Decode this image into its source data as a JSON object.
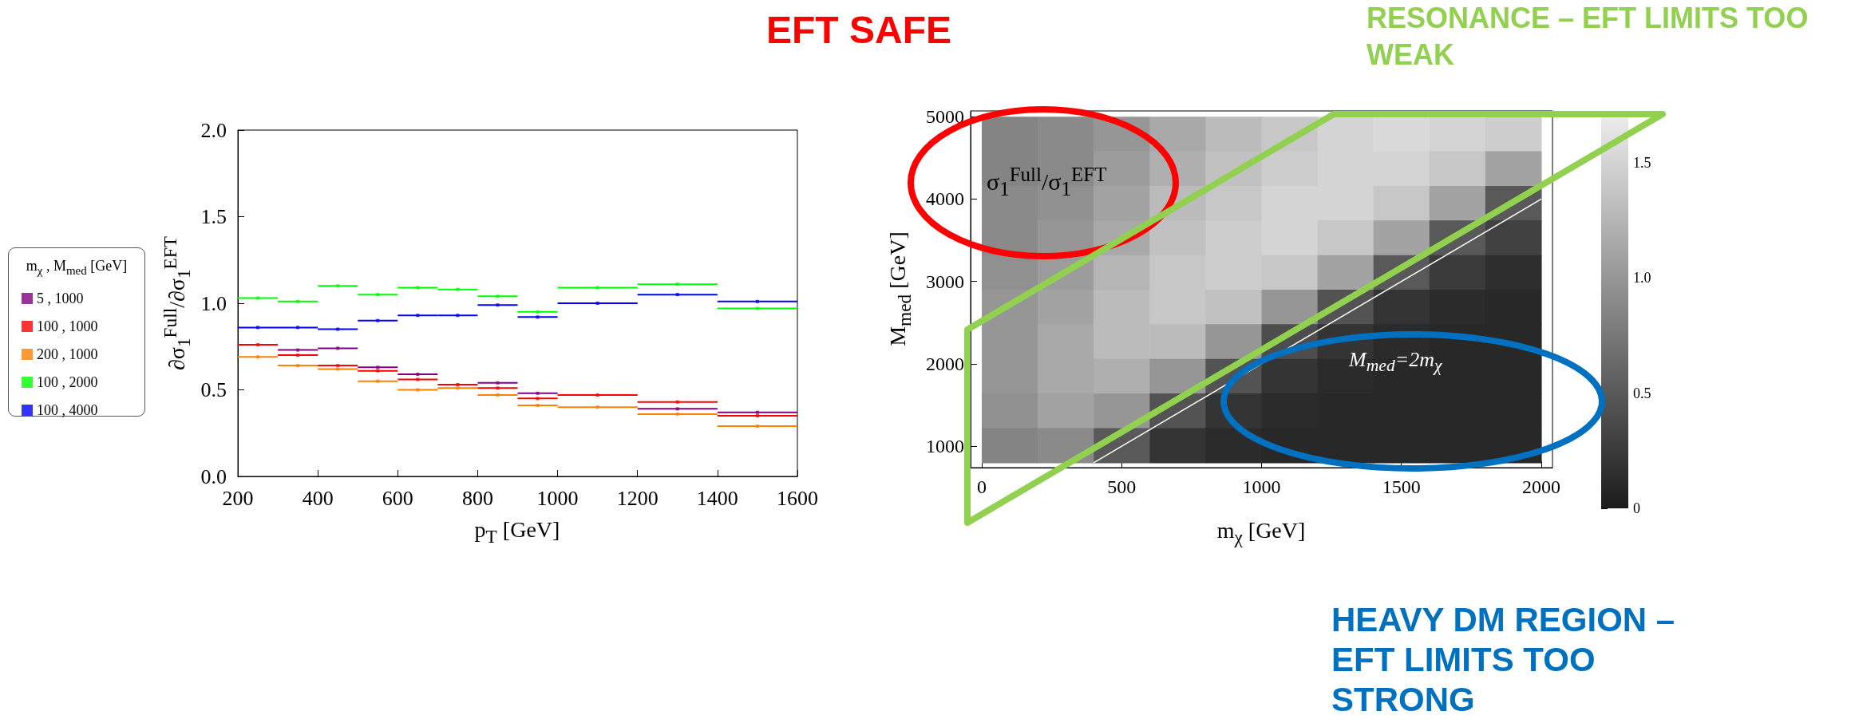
{
  "chart_data": [
    {
      "type": "scatter",
      "marker": "square",
      "x": [
        250,
        350,
        450,
        550,
        650,
        750,
        850,
        950,
        1100,
        1300,
        1500
      ],
      "series": [
        {
          "name": "5 , 1000",
          "color": "#800080",
          "values": [
            null,
            0.73,
            0.74,
            0.63,
            0.59,
            null,
            0.54,
            0.48,
            null,
            0.39,
            0.37
          ],
          "xerrors": [
            null,
            50,
            50,
            50,
            50,
            null,
            50,
            50,
            null,
            100,
            100
          ]
        },
        {
          "name": "100 , 1000",
          "color": "#ff0000",
          "values": [
            0.76,
            0.7,
            0.64,
            0.61,
            0.56,
            0.53,
            0.51,
            0.45,
            0.47,
            0.43,
            0.35
          ],
          "xerrors": [
            50,
            50,
            50,
            50,
            50,
            50,
            50,
            50,
            100,
            100,
            100
          ]
        },
        {
          "name": "200 , 1000",
          "color": "#ff8000",
          "values": [
            0.69,
            0.64,
            0.62,
            0.55,
            0.5,
            0.51,
            0.47,
            0.41,
            0.4,
            0.36,
            0.29
          ],
          "xerrors": [
            50,
            50,
            50,
            50,
            50,
            50,
            50,
            50,
            100,
            100,
            100
          ]
        },
        {
          "name": "100 , 2000",
          "color": "#00ff00",
          "values": [
            1.03,
            1.01,
            1.1,
            1.05,
            1.09,
            1.08,
            1.04,
            0.95,
            1.09,
            1.11,
            0.97
          ],
          "xerrors": [
            50,
            50,
            50,
            50,
            50,
            50,
            50,
            50,
            100,
            100,
            100
          ]
        },
        {
          "name": "100 , 4000",
          "color": "#0000ff",
          "values": [
            0.86,
            0.86,
            0.85,
            0.9,
            0.93,
            0.93,
            0.99,
            0.92,
            1.0,
            1.05,
            1.01
          ],
          "xerrors": [
            50,
            50,
            50,
            50,
            50,
            50,
            50,
            50,
            100,
            100,
            100
          ]
        }
      ],
      "xlim": [
        200,
        1600
      ],
      "xticks": [
        200,
        400,
        600,
        800,
        1000,
        1200,
        1400,
        1600
      ],
      "ylim": [
        0,
        2
      ],
      "yticks": [
        {
          "value": 0,
          "label": "0.0"
        },
        {
          "value": 0.5,
          "label": "0.5"
        },
        {
          "value": 1,
          "label": "1.0"
        },
        {
          "value": 1.5,
          "label": "1.5"
        },
        {
          "value": 2,
          "label": "2.0"
        }
      ],
      "xlabel": "p$_{T}$ [GeV]",
      "ylabel": "∂σ$_{1}$$^{Full}$/∂σ$_{1}$$^{EFT}$",
      "legend": "left",
      "legend_title": "m$_{χ}$ , M$_{med}$ [GeV]"
    },
    {
      "type": "heatmap",
      "x": [
        100,
        300,
        500,
        700,
        900,
        1100,
        1300,
        1500,
        1700,
        1900
      ],
      "y": [
        4790,
        4370,
        3950,
        3530,
        3110,
        2690,
        2270,
        1850,
        1430,
        1010
      ],
      "cells": [
        [
          0.85,
          0.9,
          1.0,
          1.15,
          1.3,
          1.4,
          1.5,
          1.55,
          1.5,
          1.45
        ],
        [
          0.85,
          0.9,
          1.05,
          1.2,
          1.35,
          1.45,
          1.5,
          1.5,
          1.4,
          1.1
        ],
        [
          0.9,
          0.95,
          1.1,
          1.3,
          1.4,
          1.5,
          1.5,
          1.4,
          1.1,
          0.5
        ],
        [
          0.9,
          1.0,
          1.15,
          1.35,
          1.45,
          1.5,
          1.4,
          1.1,
          0.5,
          0.3
        ],
        [
          0.95,
          1.05,
          1.25,
          1.4,
          1.45,
          1.4,
          1.1,
          0.5,
          0.25,
          0.15
        ],
        [
          1.0,
          1.1,
          1.3,
          1.4,
          1.35,
          1.0,
          0.45,
          0.2,
          0.12,
          0.1
        ],
        [
          1.0,
          1.15,
          1.3,
          1.3,
          1.0,
          0.4,
          0.2,
          0.12,
          0.1,
          0.1
        ],
        [
          1.0,
          1.15,
          1.2,
          1.0,
          0.45,
          0.2,
          0.12,
          0.1,
          0.1,
          0.1
        ],
        [
          0.95,
          1.1,
          1.0,
          0.45,
          0.2,
          0.12,
          0.1,
          0.1,
          0.1,
          0.1
        ],
        [
          0.85,
          0.9,
          0.5,
          0.2,
          0.12,
          0.1,
          0.1,
          0.1,
          0.1,
          0.1
        ]
      ],
      "clim": [
        0,
        1.7
      ],
      "cticks": [
        0,
        0.5,
        {
          "value": 1,
          "label": "1.0"
        },
        1.5
      ],
      "xlim": [
        -40,
        2040
      ],
      "xticks": [
        0,
        500,
        1000,
        1500,
        2000
      ],
      "ylim": [
        740,
        5070
      ],
      "yticks": [
        1000,
        2000,
        3000,
        4000,
        5000
      ],
      "xlabel": "m$_{χ}$ [GeV]",
      "ylabel": "M$_{med}$ [GeV]",
      "series": [
        {
          "type": "line",
          "x": [
            400,
            2000
          ],
          "values": [
            800,
            4000
          ],
          "color": "#ffffff"
        }
      ],
      "annotations": [
        "σ$_{1}$$^{Full}$/σ$_{1}$$^{EFT}$",
        "M$_{med}$=2m$_{χ}$",
        "EFT SAFE",
        "RESONANCE – EFT LIMITS TOO WEAK",
        "HEAVY DM REGION – EFT LIMITS TOO STRONG"
      ]
    }
  ]
}
